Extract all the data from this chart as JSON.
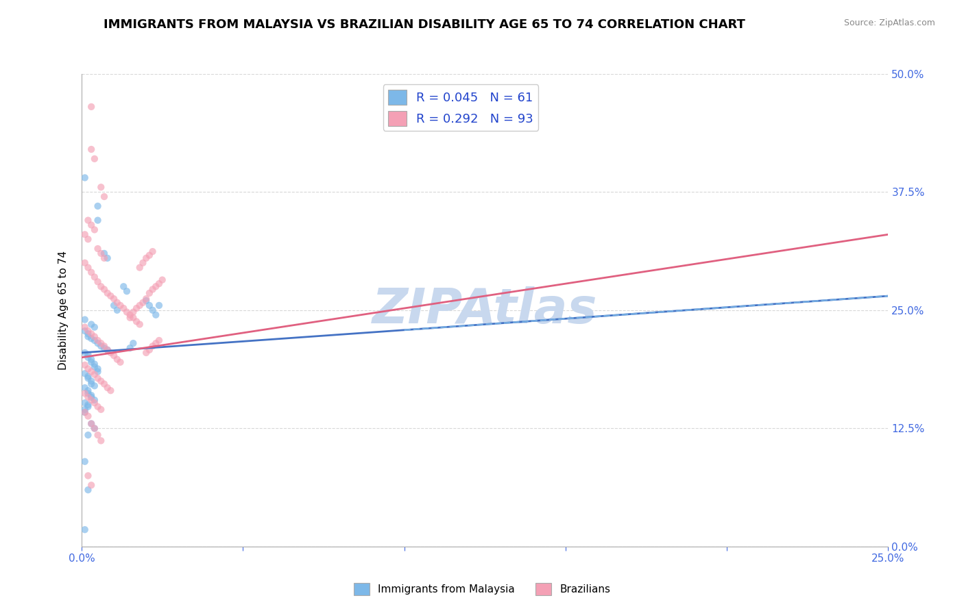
{
  "title": "IMMIGRANTS FROM MALAYSIA VS BRAZILIAN DISABILITY AGE 65 TO 74 CORRELATION CHART",
  "source_text": "Source: ZipAtlas.com",
  "xlim": [
    0.0,
    0.25
  ],
  "ylim": [
    0.0,
    0.5
  ],
  "blue_color": "#7db8e8",
  "pink_color": "#f4a0b5",
  "blue_line_color": "#4472c4",
  "pink_line_color": "#e06080",
  "watermark": "ZIPAtlas",
  "watermark_color": "#c8d8ee",
  "title_fontsize": 13,
  "axis_label_color": "#4169e1",
  "blue_trend": [
    0.0,
    0.205,
    0.25,
    0.265
  ],
  "pink_trend": [
    0.0,
    0.2,
    0.25,
    0.33
  ],
  "blue_scatter": [
    [
      0.001,
      0.39
    ],
    [
      0.005,
      0.36
    ],
    [
      0.005,
      0.345
    ],
    [
      0.007,
      0.31
    ],
    [
      0.008,
      0.305
    ],
    [
      0.013,
      0.275
    ],
    [
      0.014,
      0.27
    ],
    [
      0.02,
      0.26
    ],
    [
      0.021,
      0.255
    ],
    [
      0.001,
      0.24
    ],
    [
      0.003,
      0.235
    ],
    [
      0.004,
      0.232
    ],
    [
      0.001,
      0.228
    ],
    [
      0.002,
      0.225
    ],
    [
      0.002,
      0.222
    ],
    [
      0.003,
      0.22
    ],
    [
      0.004,
      0.218
    ],
    [
      0.005,
      0.215
    ],
    [
      0.006,
      0.212
    ],
    [
      0.007,
      0.21
    ],
    [
      0.008,
      0.208
    ],
    [
      0.01,
      0.255
    ],
    [
      0.011,
      0.25
    ],
    [
      0.001,
      0.205
    ],
    [
      0.002,
      0.203
    ],
    [
      0.002,
      0.2
    ],
    [
      0.003,
      0.198
    ],
    [
      0.003,
      0.195
    ],
    [
      0.004,
      0.193
    ],
    [
      0.004,
      0.19
    ],
    [
      0.005,
      0.188
    ],
    [
      0.005,
      0.185
    ],
    [
      0.001,
      0.183
    ],
    [
      0.002,
      0.18
    ],
    [
      0.002,
      0.178
    ],
    [
      0.003,
      0.175
    ],
    [
      0.003,
      0.172
    ],
    [
      0.004,
      0.17
    ],
    [
      0.001,
      0.168
    ],
    [
      0.002,
      0.165
    ],
    [
      0.002,
      0.162
    ],
    [
      0.003,
      0.16
    ],
    [
      0.003,
      0.158
    ],
    [
      0.004,
      0.155
    ],
    [
      0.001,
      0.152
    ],
    [
      0.002,
      0.15
    ],
    [
      0.002,
      0.148
    ],
    [
      0.001,
      0.145
    ],
    [
      0.001,
      0.142
    ],
    [
      0.003,
      0.13
    ],
    [
      0.004,
      0.125
    ],
    [
      0.002,
      0.118
    ],
    [
      0.001,
      0.09
    ],
    [
      0.002,
      0.06
    ],
    [
      0.001,
      0.018
    ],
    [
      0.022,
      0.25
    ],
    [
      0.023,
      0.245
    ],
    [
      0.024,
      0.255
    ],
    [
      0.015,
      0.21
    ],
    [
      0.016,
      0.215
    ]
  ],
  "pink_scatter": [
    [
      0.003,
      0.465
    ],
    [
      0.003,
      0.42
    ],
    [
      0.004,
      0.41
    ],
    [
      0.006,
      0.38
    ],
    [
      0.007,
      0.37
    ],
    [
      0.002,
      0.345
    ],
    [
      0.003,
      0.34
    ],
    [
      0.004,
      0.335
    ],
    [
      0.001,
      0.33
    ],
    [
      0.002,
      0.325
    ],
    [
      0.005,
      0.315
    ],
    [
      0.006,
      0.31
    ],
    [
      0.007,
      0.305
    ],
    [
      0.001,
      0.3
    ],
    [
      0.002,
      0.295
    ],
    [
      0.003,
      0.29
    ],
    [
      0.004,
      0.285
    ],
    [
      0.005,
      0.28
    ],
    [
      0.006,
      0.275
    ],
    [
      0.007,
      0.272
    ],
    [
      0.008,
      0.268
    ],
    [
      0.009,
      0.265
    ],
    [
      0.01,
      0.262
    ],
    [
      0.011,
      0.258
    ],
    [
      0.012,
      0.255
    ],
    [
      0.013,
      0.252
    ],
    [
      0.014,
      0.248
    ],
    [
      0.015,
      0.245
    ],
    [
      0.016,
      0.242
    ],
    [
      0.017,
      0.238
    ],
    [
      0.018,
      0.235
    ],
    [
      0.001,
      0.232
    ],
    [
      0.002,
      0.228
    ],
    [
      0.003,
      0.225
    ],
    [
      0.004,
      0.222
    ],
    [
      0.005,
      0.218
    ],
    [
      0.006,
      0.215
    ],
    [
      0.007,
      0.212
    ],
    [
      0.008,
      0.208
    ],
    [
      0.009,
      0.205
    ],
    [
      0.01,
      0.202
    ],
    [
      0.011,
      0.198
    ],
    [
      0.012,
      0.195
    ],
    [
      0.001,
      0.192
    ],
    [
      0.002,
      0.188
    ],
    [
      0.003,
      0.185
    ],
    [
      0.004,
      0.182
    ],
    [
      0.005,
      0.178
    ],
    [
      0.006,
      0.175
    ],
    [
      0.007,
      0.172
    ],
    [
      0.008,
      0.168
    ],
    [
      0.009,
      0.165
    ],
    [
      0.001,
      0.162
    ],
    [
      0.002,
      0.158
    ],
    [
      0.003,
      0.155
    ],
    [
      0.004,
      0.152
    ],
    [
      0.005,
      0.148
    ],
    [
      0.006,
      0.145
    ],
    [
      0.001,
      0.142
    ],
    [
      0.002,
      0.138
    ],
    [
      0.003,
      0.13
    ],
    [
      0.004,
      0.125
    ],
    [
      0.005,
      0.118
    ],
    [
      0.006,
      0.112
    ],
    [
      0.002,
      0.075
    ],
    [
      0.003,
      0.065
    ],
    [
      0.015,
      0.242
    ],
    [
      0.016,
      0.248
    ],
    [
      0.017,
      0.252
    ],
    [
      0.018,
      0.255
    ],
    [
      0.019,
      0.258
    ],
    [
      0.02,
      0.262
    ],
    [
      0.021,
      0.268
    ],
    [
      0.022,
      0.272
    ],
    [
      0.023,
      0.275
    ],
    [
      0.024,
      0.278
    ],
    [
      0.025,
      0.282
    ],
    [
      0.02,
      0.205
    ],
    [
      0.021,
      0.208
    ],
    [
      0.022,
      0.212
    ],
    [
      0.023,
      0.215
    ],
    [
      0.024,
      0.218
    ],
    [
      0.018,
      0.295
    ],
    [
      0.019,
      0.3
    ],
    [
      0.02,
      0.305
    ],
    [
      0.021,
      0.308
    ],
    [
      0.022,
      0.312
    ]
  ]
}
